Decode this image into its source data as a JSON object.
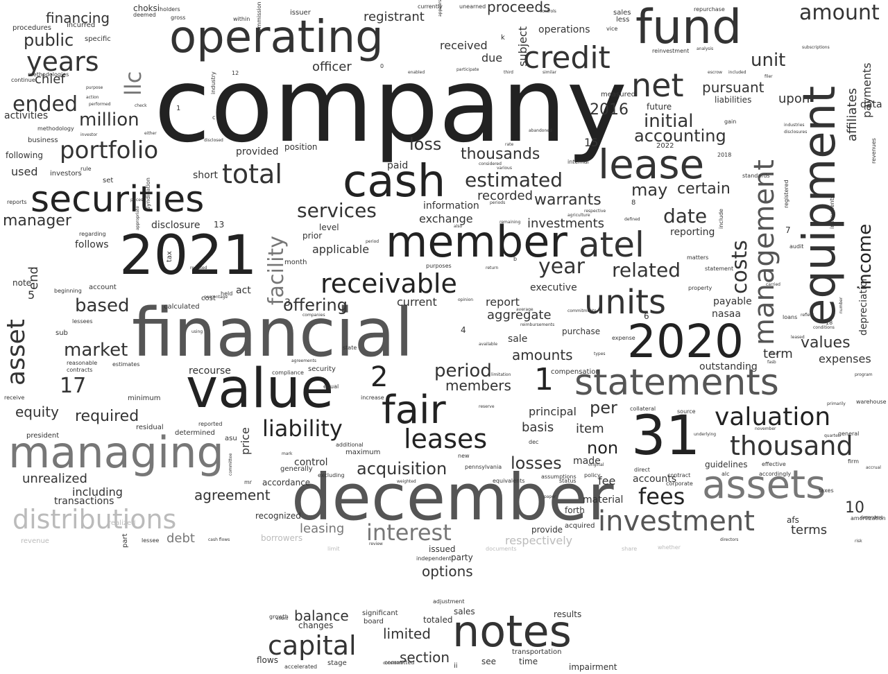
{
  "words": [
    "company",
    "financial",
    "december",
    "value",
    "fund",
    "equipment",
    "operating",
    "securities",
    "2021",
    "2020",
    "managing",
    "member",
    "cash",
    "notes",
    "31",
    "statements",
    "lease",
    "assets",
    "units",
    "atel",
    "investment",
    "fair",
    "credit",
    "net",
    "management",
    "income",
    "portfolio",
    "receivable",
    "valuation",
    "thousand",
    "leases",
    "liability",
    "interest",
    "capital",
    "distributions",
    "total",
    "fees",
    "years",
    "asset",
    "facility",
    "amount",
    "estimated",
    "services",
    "related",
    "year",
    "acquisition",
    "market",
    "based",
    "unit",
    "accounting",
    "initial",
    "date",
    "costs",
    "million",
    "ended",
    "public",
    "llc",
    "period",
    "losses",
    "offering",
    "1",
    "2",
    "17",
    "2016",
    "10",
    "loss",
    "thousands",
    "warrants",
    "may",
    "certain",
    "pursuant",
    "upon",
    "affiliates",
    "payments",
    "depreciation",
    "recorded",
    "investments",
    "manager",
    "required",
    "equity",
    "unrealized",
    "agreement",
    "including",
    "debt",
    "leasing",
    "balance",
    "limited",
    "section",
    "options",
    "officer",
    "chief",
    "financing",
    "proceeds",
    "registrant",
    "received",
    "due",
    "subject",
    "operations",
    "future",
    "liabilities",
    "data",
    "activities",
    "following",
    "used",
    "follows",
    "note",
    "end",
    "per",
    "non",
    "item",
    "fee",
    "basis",
    "price",
    "recourse",
    "members",
    "amounts",
    "aggregate",
    "current",
    "report",
    "sale",
    "purchase",
    "term",
    "values",
    "expenses",
    "outstanding",
    "payable",
    "nasaa",
    "guidelines",
    "accounts",
    "material",
    "terms",
    "afs",
    "principal",
    "exchange",
    "information",
    "applicable",
    "level",
    "prior",
    "provided",
    "position",
    "disclosure",
    "short",
    "paid",
    "executive",
    "reporting",
    "made",
    "control",
    "generally",
    "accordance",
    "transactions",
    "realized",
    "forth",
    "acquired",
    "provide",
    "recognized",
    "borrowers",
    "respectively",
    "issued",
    "party",
    "totaled",
    "changes",
    "sales",
    "flows",
    "stage",
    "see",
    "time",
    "impairment",
    "transportation",
    "results",
    "significant",
    "board",
    "adjustment",
    "accelerated",
    "committed",
    "independent",
    "ii",
    "5",
    "3",
    "8",
    "7",
    "15",
    "13",
    "6",
    "4",
    "choksi",
    "deemed",
    "incurred",
    "procedures",
    "specific",
    "business",
    "methodology",
    "investors",
    "rule",
    "set",
    "reports",
    "regarding",
    "tax",
    "month",
    "account",
    "beginning",
    "calculated",
    "cost",
    "held",
    "act",
    "sub",
    "lessees",
    "contracts",
    "estimates",
    "reasonable",
    "minimum",
    "receive",
    "president",
    "residual",
    "reported",
    "determined",
    "asu",
    "mr",
    "revenue",
    "lessee",
    "part",
    "issuer",
    "gross",
    "holders",
    "within",
    "commission",
    "industry",
    "currently",
    "unearned",
    "controls",
    "sales",
    "less",
    "vice",
    "repurchase",
    "reinvestment",
    "analysis",
    "escrow",
    "included",
    "filer",
    "subscriptions",
    "measured",
    "gain",
    "industries",
    "disclosures",
    "2018",
    "2022",
    "internal",
    "standards",
    "include",
    "registered",
    "revenues",
    "instruments",
    "audit",
    "matters",
    "statement",
    "property",
    "compliance",
    "security",
    "equal",
    "increase",
    "maximum",
    "additional",
    "excluding",
    "pennsylvania",
    "equivalents",
    "assumptions",
    "status",
    "policy",
    "dec",
    "new",
    "direct",
    "contract",
    "corporate",
    "alc",
    "accordingly",
    "effective",
    "taxes",
    "amortization",
    "risk",
    "firm",
    "accrual",
    "program",
    "warehouse",
    "general",
    "quarter",
    "source",
    "collateral",
    "expense",
    "types",
    "respective",
    "defined",
    "remaining",
    "return",
    "purposes",
    "state",
    "available",
    "limitation",
    "compensation",
    "carried",
    "reflect",
    "conditions",
    "loans",
    "number",
    "leased",
    "flow",
    "fasb",
    "primarily",
    "november",
    "underlying",
    "share",
    "whether",
    "commitments",
    "reimbursements",
    "average",
    "opinion",
    "documents",
    "directors",
    "dependent",
    "reserve",
    "limit",
    "review",
    "event",
    "growth",
    "1 ",
    "0",
    "12",
    "18",
    "b",
    "c",
    "k",
    "methodologies",
    "continue",
    "purpose",
    "action",
    "check",
    "performed",
    "either",
    "investor",
    "disclosed",
    "prices",
    "syndication",
    "appropriate",
    "resulted",
    "percentage",
    "using",
    "companies",
    "agreements",
    "mark",
    "weighted",
    "cash flows",
    "period",
    "considers",
    "committee",
    "appears",
    "participate",
    "enabled",
    "third",
    "similar",
    "rate",
    "abandoned",
    "various",
    "considered",
    "periods",
    "also",
    "agriculture",
    "original",
    "paper",
    "marine",
    "unless"
  ],
  "colors": {
    "darkest": "#222222",
    "dark": "#333333",
    "mid": "#555555",
    "grey": "#777777",
    "light": "#999999",
    "faint": "#bbbbbb",
    "background": "#ffffff"
  }
}
